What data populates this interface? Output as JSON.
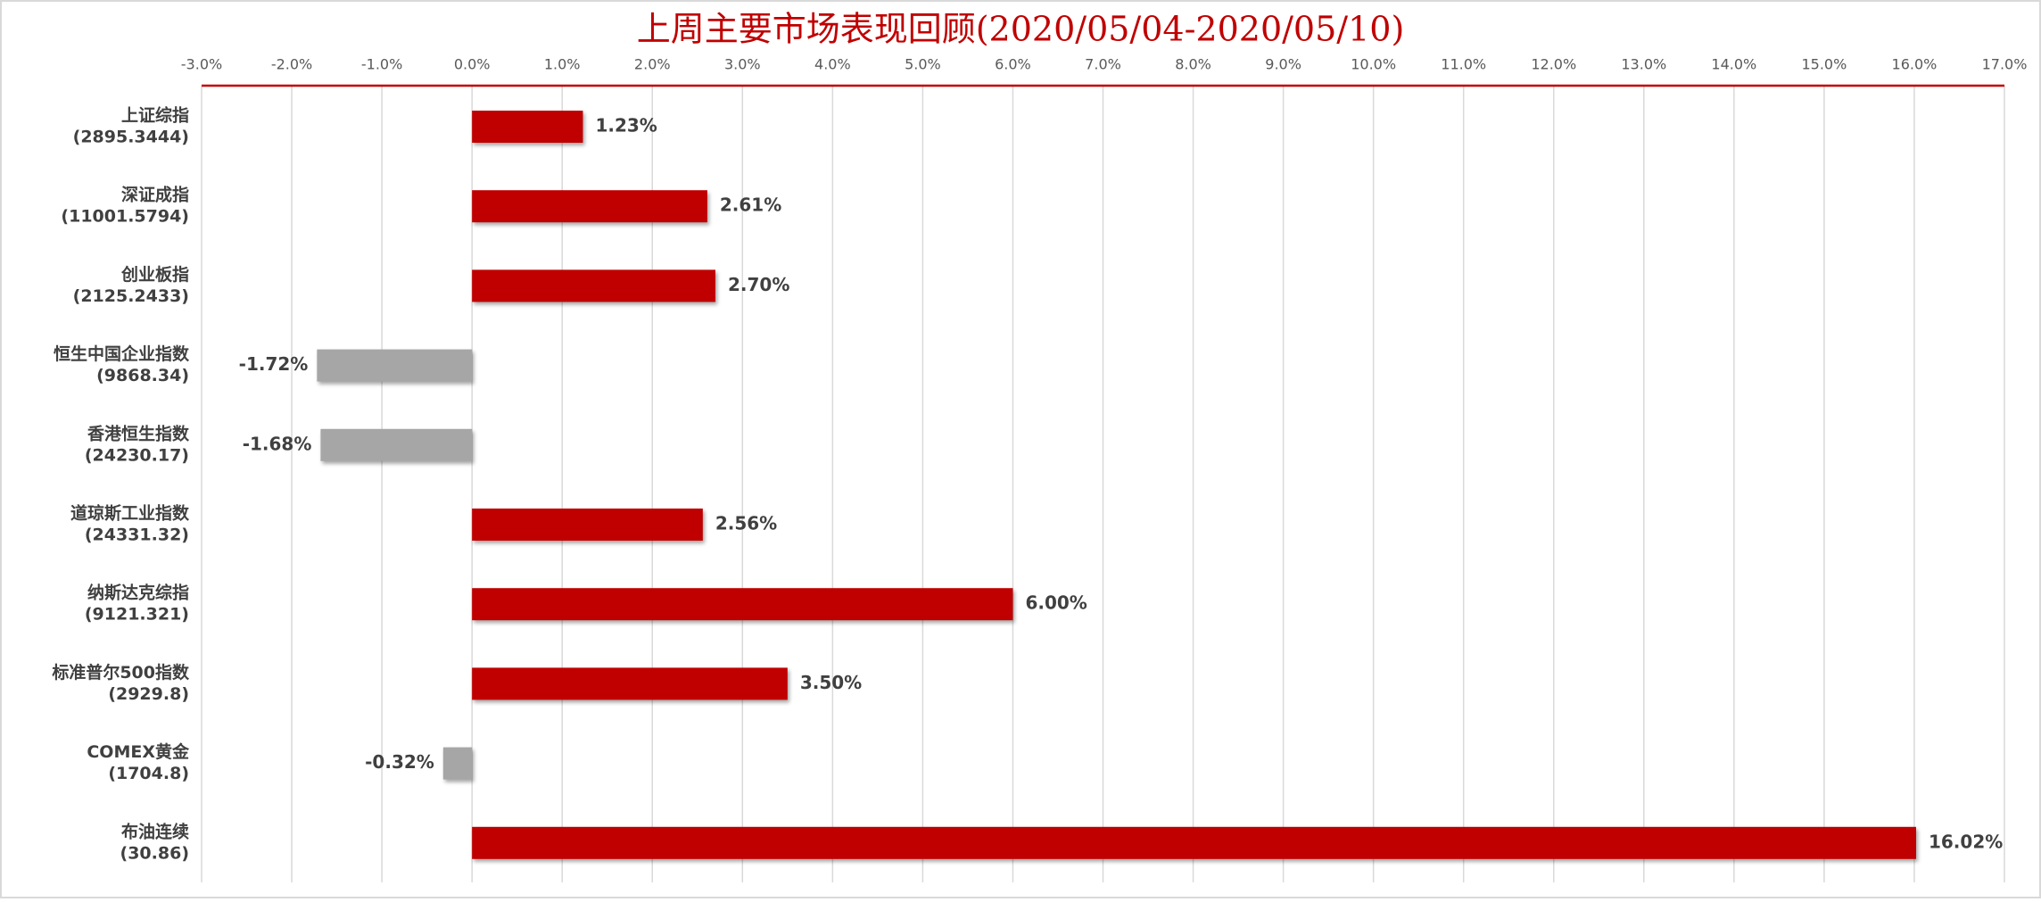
{
  "chart_data": {
    "type": "barh",
    "title": "上周主要市场表现回顾(2020/05/04-2020/05/10)",
    "categories": [
      [
        "上证综指",
        "(2895.3444)"
      ],
      [
        "深证成指",
        "(11001.5794)"
      ],
      [
        "创业板指",
        "(2125.2433)"
      ],
      [
        "恒生中国企业指数",
        "(9868.34)"
      ],
      [
        "香港恒生指数",
        "(24230.17)"
      ],
      [
        "道琼斯工业指数",
        "(24331.32)"
      ],
      [
        "纳斯达克综指",
        "(9121.321)"
      ],
      [
        "标准普尔500指数",
        "(2929.8)"
      ],
      [
        "COMEX黄金",
        "(1704.8)"
      ],
      [
        "布油连续",
        "(30.86)"
      ]
    ],
    "values": [
      1.23,
      2.61,
      2.7,
      -1.72,
      -1.68,
      2.56,
      6.0,
      3.5,
      -0.32,
      16.02
    ],
    "value_labels": [
      "1.23%",
      "2.61%",
      "2.70%",
      "-1.72%",
      "-1.68%",
      "2.56%",
      "6.00%",
      "3.50%",
      "-0.32%",
      "16.02%"
    ],
    "positive_color": "#c00000",
    "negative_color": "#a6a6a6",
    "xlim": [
      -3,
      17
    ],
    "xticks": [
      {
        "value": -3,
        "label": "-3.0%"
      },
      {
        "value": -2,
        "label": "-2.0%"
      },
      {
        "value": -1,
        "label": "-1.0%"
      },
      {
        "value": 0,
        "label": "0.0%"
      },
      {
        "value": 1,
        "label": "1.0%"
      },
      {
        "value": 2,
        "label": "2.0%"
      },
      {
        "value": 3,
        "label": "3.0%"
      },
      {
        "value": 4,
        "label": "4.0%"
      },
      {
        "value": 5,
        "label": "5.0%"
      },
      {
        "value": 6,
        "label": "6.0%"
      },
      {
        "value": 7,
        "label": "7.0%"
      },
      {
        "value": 8,
        "label": "8.0%"
      },
      {
        "value": 9,
        "label": "9.0%"
      },
      {
        "value": 10,
        "label": "10.0%"
      },
      {
        "value": 11,
        "label": "11.0%"
      },
      {
        "value": 12,
        "label": "12.0%"
      },
      {
        "value": 13,
        "label": "13.0%"
      },
      {
        "value": 14,
        "label": "14.0%"
      },
      {
        "value": 15,
        "label": "15.0%"
      },
      {
        "value": 16,
        "label": "16.0%"
      },
      {
        "value": 17,
        "label": "17.0%"
      }
    ],
    "grid": true
  }
}
